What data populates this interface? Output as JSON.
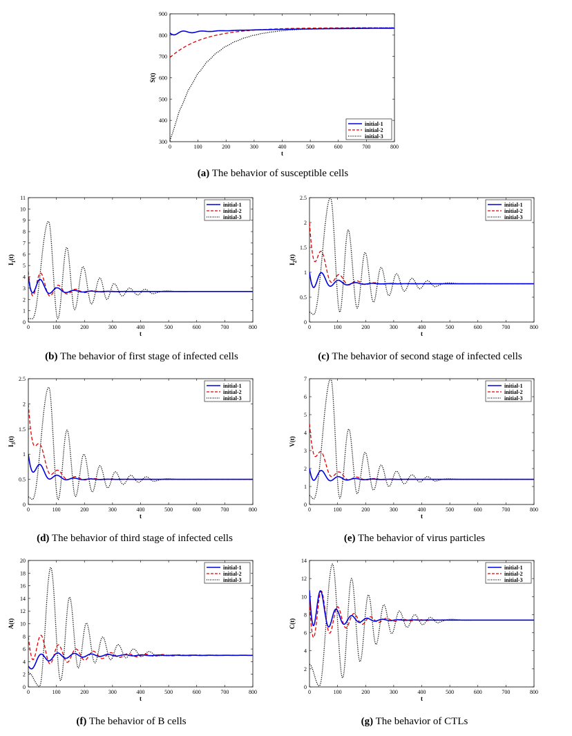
{
  "colors": {
    "initial-1": "#0000e0",
    "initial-2": "#e00000",
    "initial-3": "#000000"
  },
  "chart_data": [
    {
      "id": "a",
      "type": "line",
      "title": "",
      "xlabel": "t",
      "ylabel": "S(t)",
      "ylabel_sub": "",
      "xlim": [
        0,
        800
      ],
      "ylim": [
        300,
        900
      ],
      "xticks": [
        0,
        100,
        200,
        300,
        400,
        500,
        600,
        700,
        800
      ],
      "yticks": [
        300,
        400,
        500,
        600,
        700,
        800,
        900
      ],
      "legend": [
        "initial-1",
        "initial-2",
        "initial-3"
      ],
      "legend_loc": "bottom-right",
      "series": [
        {
          "name": "initial-1",
          "equilibrium": 835,
          "initial": 810,
          "amplitude": 12,
          "period": 65,
          "decay": 70,
          "late_amp": 4,
          "late_decay": 350,
          "style": "solid"
        },
        {
          "name": "initial-2",
          "equilibrium": 835,
          "initial": 695,
          "amplitude": 0,
          "period": 65,
          "decay": 70,
          "late_amp": 0,
          "late_decay": 120,
          "style": "dashed"
        },
        {
          "name": "initial-3",
          "equilibrium": 835,
          "initial": 305,
          "amplitude": 0,
          "period": 65,
          "decay": 110,
          "late_amp": 0,
          "late_decay": 50,
          "style": "dotted"
        }
      ],
      "caption_letter": "(a)",
      "caption_text": "The behavior of susceptible cells"
    },
    {
      "id": "b",
      "type": "line",
      "title": "",
      "xlabel": "t",
      "ylabel": "I",
      "ylabel_sub": "1",
      "ylabel_tail": "(t)",
      "xlim": [
        0,
        800
      ],
      "ylim": [
        0,
        11
      ],
      "xticks": [
        0,
        100,
        200,
        300,
        400,
        500,
        600,
        700,
        800
      ],
      "yticks": [
        0,
        1,
        2,
        3,
        4,
        5,
        6,
        7,
        8,
        9,
        10,
        11
      ],
      "legend": [
        "initial-1",
        "initial-2",
        "initial-3"
      ],
      "legend_loc": "top-right",
      "series": [
        {
          "name": "initial-1",
          "equilibrium": 2.7,
          "initial": 4.0,
          "amplitude": 1.3,
          "period": 60,
          "decay": 60,
          "style": "solid"
        },
        {
          "name": "initial-2",
          "equilibrium": 2.7,
          "initial": 4.5,
          "amplitude": 2.0,
          "period": 62,
          "decay": 70,
          "style": "dashed"
        },
        {
          "name": "initial-3",
          "equilibrium": 2.7,
          "initial": 0.3,
          "peaks": [
            [
              72,
              8.9
            ],
            [
              137,
              6.6
            ],
            [
              195,
              4.9
            ],
            [
              255,
              3.9
            ],
            [
              305,
              3.4
            ],
            [
              360,
              3.0
            ],
            [
              415,
              2.9
            ]
          ],
          "troughs": [
            [
              15,
              0.3
            ],
            [
              105,
              0.3
            ],
            [
              165,
              1.1
            ],
            [
              225,
              1.6
            ],
            [
              280,
              2.0
            ],
            [
              335,
              2.3
            ],
            [
              390,
              2.4
            ],
            [
              445,
              2.5
            ]
          ],
          "style": "dotted"
        }
      ],
      "caption_letter": "(b)",
      "caption_text": "The behavior of first stage of infected cells"
    },
    {
      "id": "c",
      "type": "line",
      "title": "",
      "xlabel": "t",
      "ylabel": "I",
      "ylabel_sub": "2",
      "ylabel_tail": "(t)",
      "xlim": [
        0,
        800
      ],
      "ylim": [
        0,
        2.5
      ],
      "xticks": [
        0,
        100,
        200,
        300,
        400,
        500,
        600,
        700,
        800
      ],
      "yticks": [
        0,
        0.5,
        1,
        1.5,
        2,
        2.5
      ],
      "legend": [
        "initial-1",
        "initial-2",
        "initial-3"
      ],
      "legend_loc": "top-right",
      "series": [
        {
          "name": "initial-1",
          "equilibrium": 0.77,
          "initial": 1.0,
          "amplitude": 0.3,
          "period": 60,
          "decay": 60,
          "style": "solid"
        },
        {
          "name": "initial-2",
          "equilibrium": 0.77,
          "initial": 2.0,
          "amplitude": 0.45,
          "period": 62,
          "decay": 70,
          "style": "dashed"
        },
        {
          "name": "initial-3",
          "equilibrium": 0.77,
          "initial": 0.2,
          "peaks": [
            [
              75,
              2.5
            ],
            [
              138,
              1.85
            ],
            [
              198,
              1.4
            ],
            [
              255,
              1.1
            ],
            [
              310,
              0.97
            ],
            [
              365,
              0.88
            ],
            [
              420,
              0.83
            ]
          ],
          "troughs": [
            [
              15,
              0.15
            ],
            [
              108,
              0.2
            ],
            [
              170,
              0.28
            ],
            [
              228,
              0.4
            ],
            [
              283,
              0.53
            ],
            [
              338,
              0.62
            ],
            [
              393,
              0.67
            ],
            [
              448,
              0.71
            ]
          ],
          "style": "dotted"
        }
      ],
      "caption_letter": "(c)",
      "caption_text": "The behavior of second stage of infected cells"
    },
    {
      "id": "d",
      "type": "line",
      "title": "",
      "xlabel": "t",
      "ylabel": "I",
      "ylabel_sub": "3",
      "ylabel_tail": "(t)",
      "xlim": [
        0,
        800
      ],
      "ylim": [
        0,
        2.5
      ],
      "xticks": [
        0,
        100,
        200,
        300,
        400,
        500,
        600,
        700,
        800
      ],
      "yticks": [
        0,
        0.5,
        1,
        1.5,
        2,
        2.5
      ],
      "legend": [
        "initial-1",
        "initial-2",
        "initial-3"
      ],
      "legend_loc": "top-right",
      "series": [
        {
          "name": "initial-1",
          "equilibrium": 0.5,
          "initial": 1.0,
          "amplitude": 0.25,
          "period": 60,
          "decay": 60,
          "style": "solid"
        },
        {
          "name": "initial-2",
          "equilibrium": 0.5,
          "initial": 2.0,
          "amplitude": 0.35,
          "period": 62,
          "decay": 70,
          "style": "dashed"
        },
        {
          "name": "initial-3",
          "equilibrium": 0.5,
          "initial": 0.15,
          "peaks": [
            [
              73,
              2.33
            ],
            [
              138,
              1.48
            ],
            [
              198,
              1.0
            ],
            [
              255,
              0.77
            ],
            [
              310,
              0.65
            ],
            [
              365,
              0.58
            ],
            [
              420,
              0.55
            ]
          ],
          "troughs": [
            [
              15,
              0.1
            ],
            [
              106,
              0.1
            ],
            [
              168,
              0.16
            ],
            [
              228,
              0.25
            ],
            [
              283,
              0.33
            ],
            [
              338,
              0.4
            ],
            [
              393,
              0.44
            ],
            [
              448,
              0.46
            ]
          ],
          "style": "dotted"
        }
      ],
      "caption_letter": "(d)",
      "caption_text": "The behavior of third stage of infected cells"
    },
    {
      "id": "e",
      "type": "line",
      "title": "",
      "xlabel": "t",
      "ylabel": "V(t)",
      "ylabel_sub": "",
      "xlim": [
        0,
        800
      ],
      "ylim": [
        0,
        7
      ],
      "xticks": [
        0,
        100,
        200,
        300,
        400,
        500,
        600,
        700,
        800
      ],
      "yticks": [
        0,
        1,
        2,
        3,
        4,
        5,
        6,
        7
      ],
      "legend": [
        "initial-1",
        "initial-2",
        "initial-3"
      ],
      "legend_loc": "top-right",
      "series": [
        {
          "name": "initial-1",
          "equilibrium": 1.4,
          "initial": 2.0,
          "amplitude": 0.6,
          "period": 60,
          "decay": 60,
          "style": "solid"
        },
        {
          "name": "initial-2",
          "equilibrium": 1.4,
          "initial": 4.5,
          "amplitude": 0.9,
          "period": 62,
          "decay": 70,
          "style": "dashed"
        },
        {
          "name": "initial-3",
          "equilibrium": 1.4,
          "initial": 0.5,
          "peaks": [
            [
              76,
              7.0
            ],
            [
              140,
              4.2
            ],
            [
              198,
              2.9
            ],
            [
              255,
              2.2
            ],
            [
              310,
              1.85
            ],
            [
              365,
              1.65
            ],
            [
              420,
              1.55
            ]
          ],
          "troughs": [
            [
              15,
              0.3
            ],
            [
              108,
              0.35
            ],
            [
              170,
              0.6
            ],
            [
              228,
              0.8
            ],
            [
              283,
              1.0
            ],
            [
              338,
              1.15
            ],
            [
              393,
              1.25
            ],
            [
              448,
              1.3
            ]
          ],
          "style": "dotted"
        }
      ],
      "caption_letter": "(e)",
      "caption_text": "The behavior of virus particles"
    },
    {
      "id": "f",
      "type": "line",
      "title": "",
      "xlabel": "t",
      "ylabel": "A(t)",
      "ylabel_sub": "",
      "xlim": [
        0,
        800
      ],
      "ylim": [
        0,
        20
      ],
      "xticks": [
        0,
        100,
        200,
        300,
        400,
        500,
        600,
        700,
        800
      ],
      "yticks": [
        0,
        2,
        4,
        6,
        8,
        10,
        12,
        14,
        16,
        18,
        20
      ],
      "legend": [
        "initial-1",
        "initial-2",
        "initial-3"
      ],
      "legend_loc": "top-right",
      "series": [
        {
          "name": "initial-1",
          "equilibrium": 5.0,
          "initial": 3.3,
          "amplitude": 1.0,
          "period": 60,
          "decay": 150,
          "style": "solid"
        },
        {
          "name": "initial-2",
          "equilibrium": 5.0,
          "initial": 8.0,
          "amplitude": 3.0,
          "period": 62,
          "decay": 150,
          "style": "dashed"
        },
        {
          "name": "initial-3",
          "equilibrium": 5.0,
          "initial": 2.3,
          "peaks": [
            [
              80,
              18.9
            ],
            [
              147,
              14.2
            ],
            [
              207,
              10.1
            ],
            [
              265,
              7.9
            ],
            [
              320,
              6.7
            ],
            [
              375,
              6.0
            ],
            [
              430,
              5.6
            ]
          ],
          "troughs": [
            [
              40,
              0.1
            ],
            [
              115,
              1.0
            ],
            [
              178,
              3.0
            ],
            [
              237,
              3.8
            ],
            [
              293,
              4.3
            ],
            [
              348,
              4.6
            ],
            [
              403,
              4.8
            ],
            [
              458,
              4.9
            ]
          ],
          "style": "dotted"
        }
      ],
      "caption_letter": "(f)",
      "caption_text": "The behavior of B cells"
    },
    {
      "id": "g",
      "type": "line",
      "title": "",
      "xlabel": "t",
      "ylabel": "C(t)",
      "ylabel_sub": "",
      "xlim": [
        0,
        800
      ],
      "ylim": [
        0,
        14
      ],
      "xticks": [
        0,
        100,
        200,
        300,
        400,
        500,
        600,
        700,
        800
      ],
      "yticks": [
        0,
        2,
        4,
        6,
        8,
        10,
        12,
        14
      ],
      "legend": [
        "initial-1",
        "initial-2",
        "initial-3"
      ],
      "legend_loc": "top-right",
      "series": [
        {
          "name": "initial-1",
          "equilibrium": 7.4,
          "initial": 10.7,
          "amplitude": 3.6,
          "period": 55,
          "decay": 70,
          "style": "solid"
        },
        {
          "name": "initial-2",
          "equilibrium": 7.4,
          "initial": 9.5,
          "amplitude": 4.0,
          "period": 58,
          "decay": 90,
          "style": "dashed"
        },
        {
          "name": "initial-3",
          "equilibrium": 7.4,
          "initial": 2.5,
          "peaks": [
            [
              82,
              13.6
            ],
            [
              150,
              12.0
            ],
            [
              210,
              10.2
            ],
            [
              265,
              9.1
            ],
            [
              320,
              8.4
            ],
            [
              375,
              8.0
            ],
            [
              430,
              7.7
            ]
          ],
          "troughs": [
            [
              35,
              0.1
            ],
            [
              118,
              1.0
            ],
            [
              180,
              2.8
            ],
            [
              237,
              4.7
            ],
            [
              293,
              5.9
            ],
            [
              348,
              6.6
            ],
            [
              403,
              6.9
            ],
            [
              458,
              7.1
            ]
          ],
          "style": "dotted"
        }
      ],
      "caption_letter": "(g)",
      "caption_text": "The behavior of CTLs"
    }
  ]
}
